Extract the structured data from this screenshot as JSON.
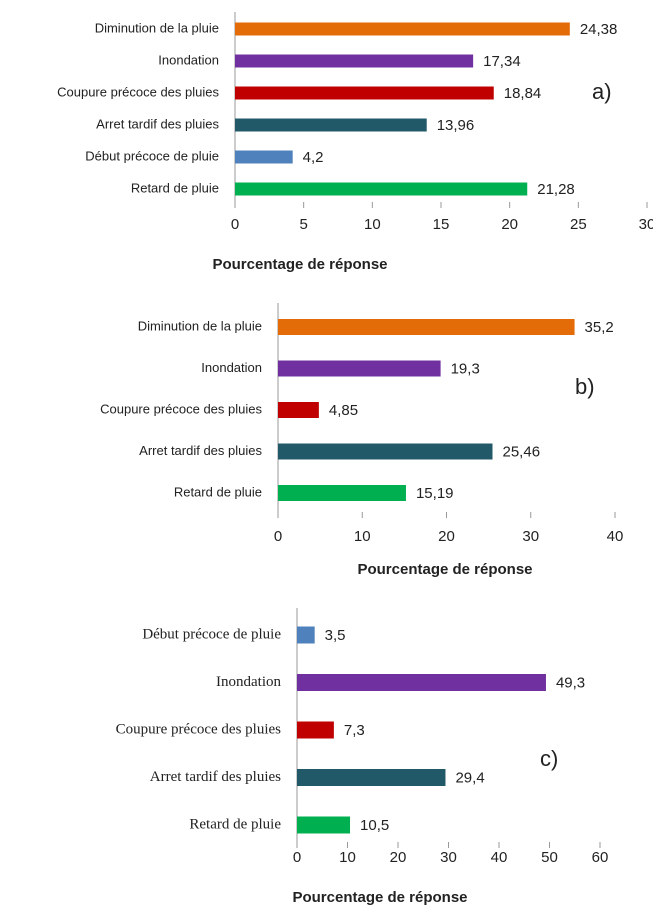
{
  "chart_data": [
    {
      "type": "bar",
      "annotation": "a)",
      "xlabel": "Pourcentage de réponse",
      "categories": [
        "Diminution de la pluie",
        "Inondation",
        "Coupure précoce des pluies",
        "Arret tardif des pluies",
        "Début précoce de pluie",
        "Retard de pluie"
      ],
      "values": [
        24.38,
        17.34,
        18.84,
        13.96,
        4.2,
        21.28
      ],
      "value_labels": [
        "24,38",
        "17,34",
        "18,84",
        "13,96",
        "4,2",
        "21,28"
      ],
      "colors": [
        "#e36c09",
        "#7030a0",
        "#c00000",
        "#215968",
        "#4f81bd",
        "#00b050"
      ],
      "xlim": [
        0,
        30
      ],
      "xticks": [
        0,
        5,
        10,
        15,
        20,
        25,
        30
      ]
    },
    {
      "type": "bar",
      "annotation": "b)",
      "xlabel": "Pourcentage de réponse",
      "categories": [
        "Diminution de la pluie",
        "Inondation",
        "Coupure précoce des pluies",
        "Arret tardif des pluies",
        "Retard de pluie"
      ],
      "values": [
        35.2,
        19.3,
        4.85,
        25.46,
        15.19
      ],
      "value_labels": [
        "35,2",
        "19,3",
        "4,85",
        "25,46",
        "15,19"
      ],
      "colors": [
        "#e36c09",
        "#7030a0",
        "#c00000",
        "#215968",
        "#00b050"
      ],
      "xlim": [
        0,
        40
      ],
      "xticks": [
        0,
        10,
        20,
        30,
        40
      ]
    },
    {
      "type": "bar",
      "annotation": "c)",
      "xlabel": "Pourcentage de réponse",
      "categories": [
        "Début précoce de pluie",
        "Inondation",
        "Coupure précoce des pluies",
        "Arret tardif des pluies",
        "Retard de pluie"
      ],
      "values": [
        3.5,
        49.3,
        7.3,
        29.4,
        10.5
      ],
      "value_labels": [
        "3,5",
        "49,3",
        "7,3",
        "29,4",
        "10,5"
      ],
      "colors": [
        "#4f81bd",
        "#7030a0",
        "#c00000",
        "#215968",
        "#00b050"
      ],
      "xlim": [
        0,
        60
      ],
      "xticks": [
        0,
        10,
        20,
        30,
        40,
        50,
        60
      ]
    }
  ]
}
